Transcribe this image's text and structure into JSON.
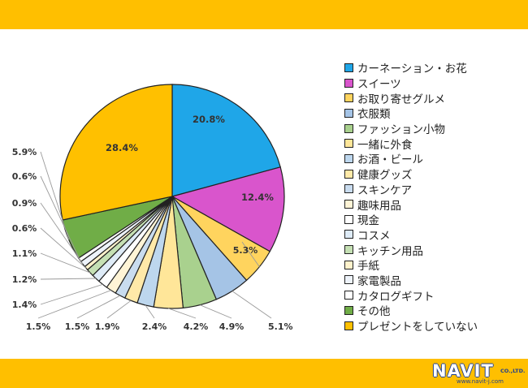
{
  "theme": {
    "band_color": "#FFBF00",
    "slice_stroke": "#222222"
  },
  "chart_data": {
    "type": "pie",
    "start_angle_deg": 0,
    "direction": "clockwise",
    "slices": [
      {
        "label": "カーネーション・お花",
        "value": 20.8,
        "pct_label": "20.8%",
        "color": "#1FA6E8"
      },
      {
        "label": "スイーツ",
        "value": 12.4,
        "pct_label": "12.4%",
        "color": "#D955CC"
      },
      {
        "label": "お取り寄せグルメ",
        "value": 5.3,
        "pct_label": "5.3%",
        "color": "#FFD45E"
      },
      {
        "label": "衣服類",
        "value": 5.1,
        "pct_label": "5.1%",
        "color": "#A5C4E6"
      },
      {
        "label": "ファッション小物",
        "value": 4.9,
        "pct_label": "4.9%",
        "color": "#A9D18E"
      },
      {
        "label": "一緒に外食",
        "value": 4.2,
        "pct_label": "4.2%",
        "color": "#FFE699"
      },
      {
        "label": "お酒・ビール",
        "value": 2.4,
        "pct_label": "2.4%",
        "color": "#BDD7EE"
      },
      {
        "label": "健康グッズ",
        "value": 1.9,
        "pct_label": "1.9%",
        "color": "#FFE9A8"
      },
      {
        "label": "スキンケア",
        "value": 1.5,
        "pct_label": "1.5%",
        "color": "#C9DCEF"
      },
      {
        "label": "趣味用品",
        "value": 1.5,
        "pct_label": "1.5%",
        "color": "#FFF4D6"
      },
      {
        "label": "現金",
        "value": 1.4,
        "pct_label": "1.4%",
        "color": "#FFFFFF"
      },
      {
        "label": "コスメ",
        "value": 1.2,
        "pct_label": "1.2%",
        "color": "#DEEBF7"
      },
      {
        "label": "キッチン用品",
        "value": 1.1,
        "pct_label": "1.1%",
        "color": "#C5E0B4"
      },
      {
        "label": "手紙",
        "value": 0.6,
        "pct_label": "0.6%",
        "color": "#FFF2CC"
      },
      {
        "label": "家電製品",
        "value": 0.9,
        "pct_label": "0.9%",
        "color": "#EEF3FA"
      },
      {
        "label": "カタログギフト",
        "value": 0.6,
        "pct_label": "0.6%",
        "color": "#FFFFFF"
      },
      {
        "label": "その他",
        "value": 5.9,
        "pct_label": "5.9%",
        "color": "#70AD47"
      },
      {
        "label": "プレゼントをしていない",
        "value": 28.4,
        "pct_label": "28.4%",
        "color": "#FFC000"
      }
    ]
  },
  "logo": {
    "brand": "NAVIT",
    "suffix": "CO.,LTD.",
    "url": "www.navit-j.com"
  }
}
